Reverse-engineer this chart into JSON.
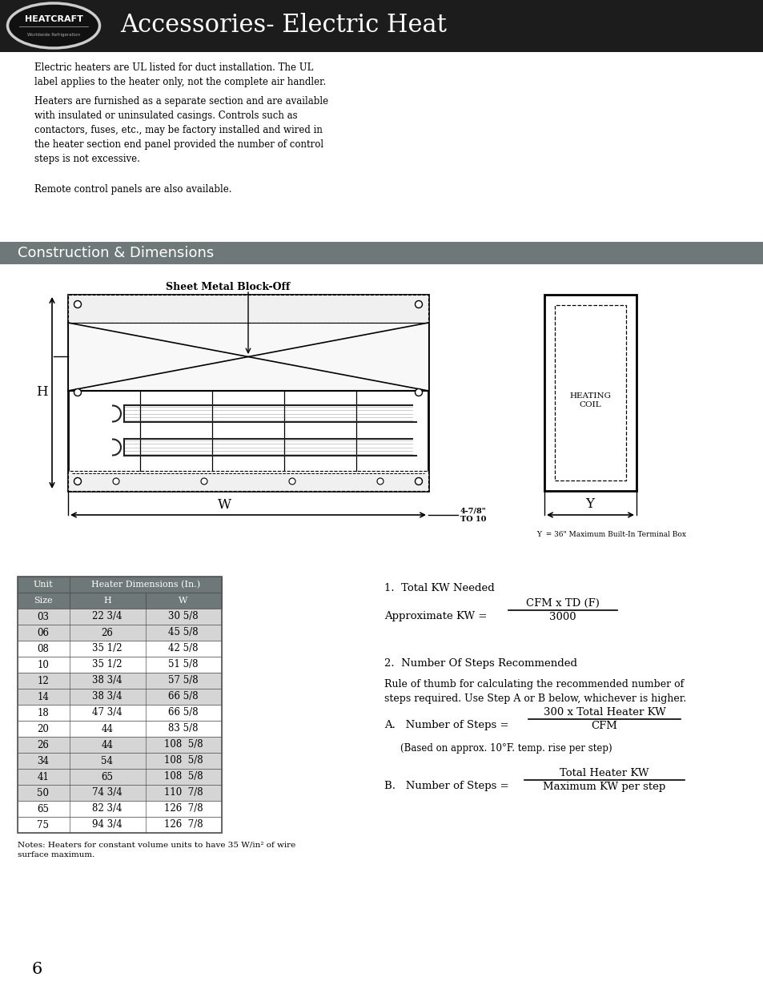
{
  "page_bg": "#ffffff",
  "header_bg": "#1c1c1c",
  "header_text": "Accessories- Electric Heat",
  "header_text_color": "#ffffff",
  "section2_bg": "#6e7878",
  "section2_text": "Construction & Dimensions",
  "section2_text_color": "#ffffff",
  "body_text_intro": "Electric heaters are UL listed for duct installation. The UL\nlabel applies to the heater only, not the complete air handler.",
  "body_text_intro2": "Heaters are furnished as a separate section and are available\nwith insulated or uninsulated casings. Controls such as\ncontactors, fuses, etc., may be factory installed and wired in\nthe heater section end panel provided the number of control\nsteps is not excessive.",
  "body_text_intro3": "Remote control panels are also available.",
  "diagram_title": "Sheet Metal Block-Off",
  "table_header_bg": "#6e7878",
  "table_header_text_color": "#ffffff",
  "table_border_color": "#555555",
  "table_data": [
    [
      "03",
      "22 3/4",
      "30 5/8"
    ],
    [
      "06",
      "26",
      "45 5/8"
    ],
    [
      "08",
      "35 1/2",
      "42 5/8"
    ],
    [
      "10",
      "35 1/2",
      "51 5/8"
    ],
    [
      "12",
      "38 3/4",
      "57 5/8"
    ],
    [
      "14",
      "38 3/4",
      "66 5/8"
    ],
    [
      "18",
      "47 3/4",
      "66 5/8"
    ],
    [
      "20",
      "44",
      "83 5/8"
    ],
    [
      "26",
      "44",
      "108  5/8"
    ],
    [
      "34",
      "54",
      "108  5/8"
    ],
    [
      "41",
      "65",
      "108  5/8"
    ],
    [
      "50",
      "74 3/4",
      "110  7/8"
    ],
    [
      "65",
      "82 3/4",
      "126  7/8"
    ],
    [
      "75",
      "94 3/4",
      "126  7/8"
    ]
  ],
  "notes_text": "Notes: Heaters for constant volume units to have 35 W/in² of wire\nsurface maximum.",
  "formula1_label": "1.  Total KW Needed",
  "formula1_text": "Approximate KW =",
  "formula1_num": "CFM x TD (F)",
  "formula1_den": "3000",
  "formula2_label": "2.  Number Of Steps Recommended",
  "formula2_text": "Rule of thumb for calculating the recommended number of\nsteps required. Use Step A or B below, whichever is higher.",
  "formula2a_label": "A.   Number of Steps =",
  "formula2a_num": "300 x Total Heater KW",
  "formula2a_den": "CFM",
  "formula2a_note": "(Based on approx. 10°F. temp. rise per step)",
  "formula2b_label": "B.   Number of Steps =",
  "formula2b_num": "Total Heater KW",
  "formula2b_den": "Maximum KW per step",
  "page_number": "6"
}
